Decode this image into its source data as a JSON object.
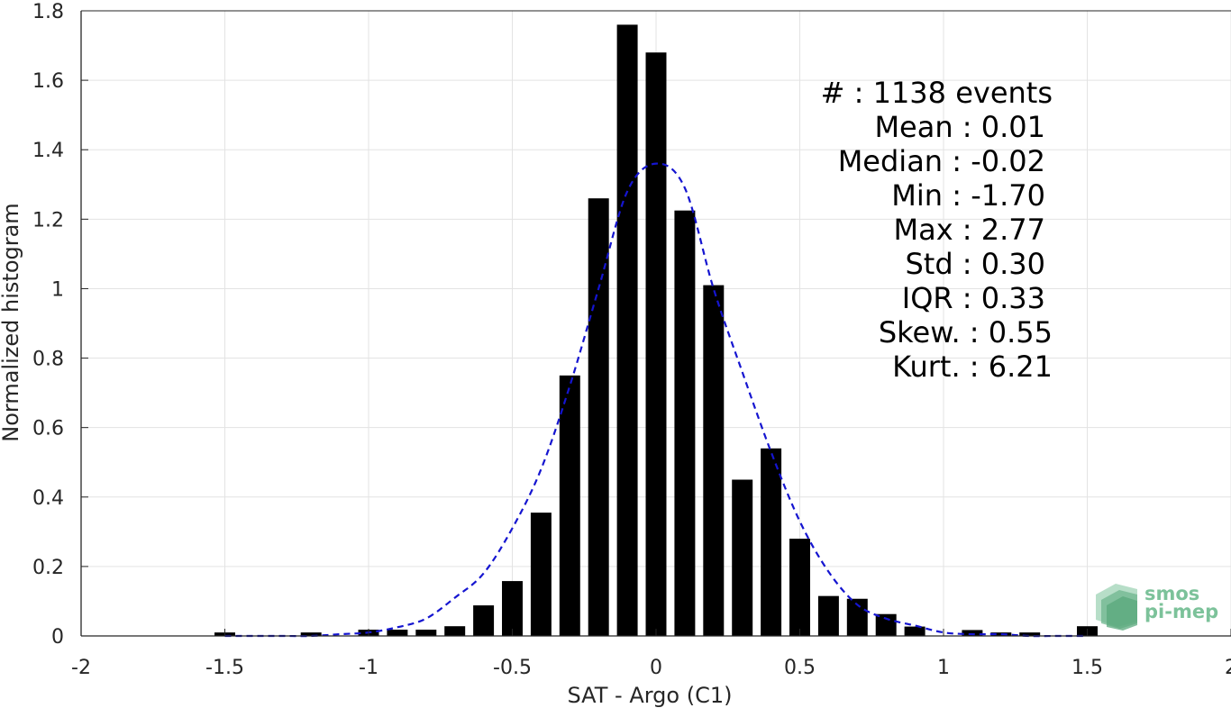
{
  "chart_data": {
    "type": "bar",
    "xlabel": "SAT - Argo (C1)",
    "ylabel": "Normalized histogram",
    "xlim": [
      -2,
      2
    ],
    "ylim": [
      0,
      1.8
    ],
    "xticks": [
      -2,
      -1.5,
      -1,
      -0.5,
      0,
      0.5,
      1,
      1.5,
      2
    ],
    "xtick_labels": [
      "-2",
      "-1.5",
      "-1",
      "-0.5",
      "0",
      "0.5",
      "1",
      "1.5",
      "2"
    ],
    "yticks": [
      0,
      0.2,
      0.4,
      0.6,
      0.8,
      1,
      1.2,
      1.4,
      1.6,
      1.8
    ],
    "ytick_labels": [
      "0",
      "0.2",
      "0.4",
      "0.6",
      "0.8",
      "1",
      "1.2",
      "1.4",
      "1.6",
      "1.8"
    ],
    "grid": true,
    "bin_width": 0.1,
    "bar_color": "#000000",
    "series": [
      {
        "type": "bar",
        "x": [
          -1.5,
          -1.4,
          -1.3,
          -1.2,
          -1.1,
          -1.0,
          -0.9,
          -0.8,
          -0.7,
          -0.6,
          -0.5,
          -0.4,
          -0.3,
          -0.2,
          -0.1,
          0.0,
          0.1,
          0.2,
          0.3,
          0.4,
          0.5,
          0.6,
          0.7,
          0.8,
          0.9,
          1.0,
          1.1,
          1.2,
          1.3,
          1.4,
          1.5
        ],
        "values": [
          0.01,
          0,
          0,
          0.01,
          0,
          0.018,
          0.018,
          0.018,
          0.028,
          0.088,
          0.158,
          0.355,
          0.75,
          1.26,
          1.76,
          1.68,
          1.225,
          1.01,
          0.45,
          0.54,
          0.28,
          0.115,
          0.107,
          0.063,
          0.027,
          0,
          0.017,
          0.01,
          0.01,
          0,
          0.028
        ]
      },
      {
        "type": "line",
        "style": "dashed",
        "color": "#1515d0",
        "x": [
          -1.5,
          -1.4,
          -1.3,
          -1.2,
          -1.1,
          -1.0,
          -0.9,
          -0.8,
          -0.7,
          -0.6,
          -0.5,
          -0.4,
          -0.3,
          -0.2,
          -0.1,
          0.0,
          0.1,
          0.2,
          0.3,
          0.4,
          0.5,
          0.6,
          0.7,
          0.8,
          0.9,
          1.0,
          1.1,
          1.2,
          1.3,
          1.4,
          1.5
        ],
        "values": [
          0.0,
          0.0,
          0.0,
          0.0,
          0.005,
          0.01,
          0.025,
          0.05,
          0.11,
          0.18,
          0.31,
          0.48,
          0.72,
          1.0,
          1.28,
          1.36,
          1.29,
          1.0,
          0.76,
          0.53,
          0.33,
          0.185,
          0.09,
          0.05,
          0.03,
          0.01,
          0.005,
          0.005,
          0.0,
          0.0,
          0.0
        ]
      }
    ],
    "annotations": [
      "#  : 1138 events",
      "Mean : 0.01",
      "Median : -0.02",
      "Min : -1.70",
      "Max : 2.77",
      "Std : 0.30",
      "IQR : 0.33",
      "Skew. : 0.55",
      "Kurt. : 6.21"
    ]
  },
  "logo": {
    "line1": "smos",
    "line2": "pi-mep",
    "color": "#7cc29a"
  }
}
